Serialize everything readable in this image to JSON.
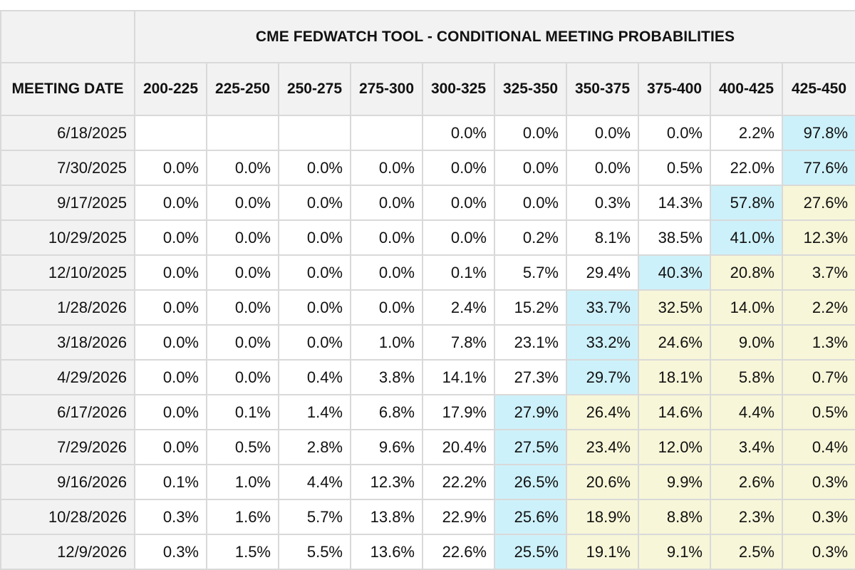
{
  "title": "CME FEDWATCH TOOL - CONDITIONAL MEETING PROBABILITIES",
  "date_header": "MEETING DATE",
  "columns": [
    "200-225",
    "225-250",
    "250-275",
    "275-300",
    "300-325",
    "325-350",
    "350-375",
    "375-400",
    "400-425",
    "425-450"
  ],
  "colors": {
    "highlight_max": "#cdf1fa",
    "highlight_above": "#f7f6d8",
    "header_bg": "#f2f2f2",
    "grid": "#d9d9d9"
  },
  "rows": [
    {
      "date": "6/18/2025",
      "values": [
        "",
        "",
        "",
        "",
        "0.0%",
        "0.0%",
        "0.0%",
        "0.0%",
        "2.2%",
        "97.8%"
      ],
      "shade": [
        "",
        "",
        "",
        "",
        "",
        "",
        "",
        "",
        "",
        "b"
      ]
    },
    {
      "date": "7/30/2025",
      "values": [
        "0.0%",
        "0.0%",
        "0.0%",
        "0.0%",
        "0.0%",
        "0.0%",
        "0.0%",
        "0.5%",
        "22.0%",
        "77.6%"
      ],
      "shade": [
        "",
        "",
        "",
        "",
        "",
        "",
        "",
        "",
        "",
        "b"
      ]
    },
    {
      "date": "9/17/2025",
      "values": [
        "0.0%",
        "0.0%",
        "0.0%",
        "0.0%",
        "0.0%",
        "0.0%",
        "0.3%",
        "14.3%",
        "57.8%",
        "27.6%"
      ],
      "shade": [
        "",
        "",
        "",
        "",
        "",
        "",
        "",
        "",
        "b",
        "y"
      ]
    },
    {
      "date": "10/29/2025",
      "values": [
        "0.0%",
        "0.0%",
        "0.0%",
        "0.0%",
        "0.0%",
        "0.2%",
        "8.1%",
        "38.5%",
        "41.0%",
        "12.3%"
      ],
      "shade": [
        "",
        "",
        "",
        "",
        "",
        "",
        "",
        "",
        "b",
        "y"
      ]
    },
    {
      "date": "12/10/2025",
      "values": [
        "0.0%",
        "0.0%",
        "0.0%",
        "0.0%",
        "0.1%",
        "5.7%",
        "29.4%",
        "40.3%",
        "20.8%",
        "3.7%"
      ],
      "shade": [
        "",
        "",
        "",
        "",
        "",
        "",
        "",
        "b",
        "y",
        "y"
      ]
    },
    {
      "date": "1/28/2026",
      "values": [
        "0.0%",
        "0.0%",
        "0.0%",
        "0.0%",
        "2.4%",
        "15.2%",
        "33.7%",
        "32.5%",
        "14.0%",
        "2.2%"
      ],
      "shade": [
        "",
        "",
        "",
        "",
        "",
        "",
        "b",
        "y",
        "y",
        "y"
      ]
    },
    {
      "date": "3/18/2026",
      "values": [
        "0.0%",
        "0.0%",
        "0.0%",
        "1.0%",
        "7.8%",
        "23.1%",
        "33.2%",
        "24.6%",
        "9.0%",
        "1.3%"
      ],
      "shade": [
        "",
        "",
        "",
        "",
        "",
        "",
        "b",
        "y",
        "y",
        "y"
      ]
    },
    {
      "date": "4/29/2026",
      "values": [
        "0.0%",
        "0.0%",
        "0.4%",
        "3.8%",
        "14.1%",
        "27.3%",
        "29.7%",
        "18.1%",
        "5.8%",
        "0.7%"
      ],
      "shade": [
        "",
        "",
        "",
        "",
        "",
        "",
        "b",
        "y",
        "y",
        "y"
      ]
    },
    {
      "date": "6/17/2026",
      "values": [
        "0.0%",
        "0.1%",
        "1.4%",
        "6.8%",
        "17.9%",
        "27.9%",
        "26.4%",
        "14.6%",
        "4.4%",
        "0.5%"
      ],
      "shade": [
        "",
        "",
        "",
        "",
        "",
        "b",
        "y",
        "y",
        "y",
        "y"
      ]
    },
    {
      "date": "7/29/2026",
      "values": [
        "0.0%",
        "0.5%",
        "2.8%",
        "9.6%",
        "20.4%",
        "27.5%",
        "23.4%",
        "12.0%",
        "3.4%",
        "0.4%"
      ],
      "shade": [
        "",
        "",
        "",
        "",
        "",
        "b",
        "y",
        "y",
        "y",
        "y"
      ]
    },
    {
      "date": "9/16/2026",
      "values": [
        "0.1%",
        "1.0%",
        "4.4%",
        "12.3%",
        "22.2%",
        "26.5%",
        "20.6%",
        "9.9%",
        "2.6%",
        "0.3%"
      ],
      "shade": [
        "",
        "",
        "",
        "",
        "",
        "b",
        "y",
        "y",
        "y",
        "y"
      ]
    },
    {
      "date": "10/28/2026",
      "values": [
        "0.3%",
        "1.6%",
        "5.7%",
        "13.8%",
        "22.9%",
        "25.6%",
        "18.9%",
        "8.8%",
        "2.3%",
        "0.3%"
      ],
      "shade": [
        "",
        "",
        "",
        "",
        "",
        "b",
        "y",
        "y",
        "y",
        "y"
      ]
    },
    {
      "date": "12/9/2026",
      "values": [
        "0.3%",
        "1.5%",
        "5.5%",
        "13.6%",
        "22.6%",
        "25.5%",
        "19.1%",
        "9.1%",
        "2.5%",
        "0.3%"
      ],
      "shade": [
        "",
        "",
        "",
        "",
        "",
        "b",
        "y",
        "y",
        "y",
        "y"
      ]
    }
  ]
}
